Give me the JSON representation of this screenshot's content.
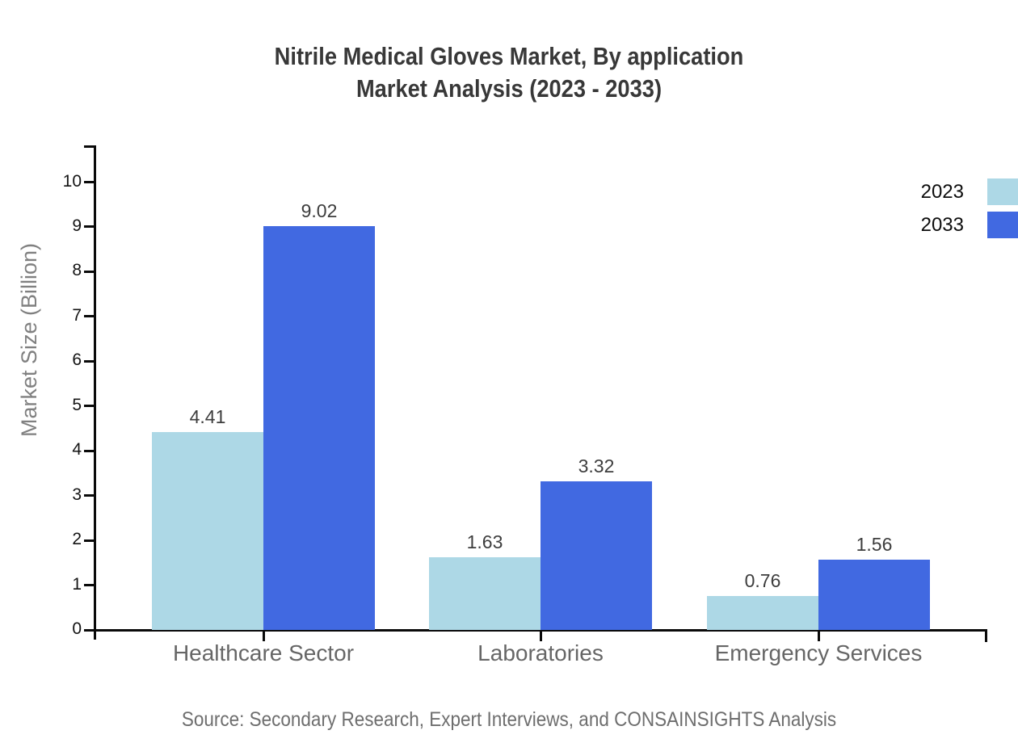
{
  "title": {
    "line1": "Nitrile Medical Gloves Market, By application",
    "line2": "Market Analysis (2023 - 2033)"
  },
  "source": "Source: Secondary Research, Expert Interviews, and CONSAINSIGHTS Analysis",
  "chart_data": {
    "type": "bar",
    "title": "Nitrile Medical Gloves Market, By application Market Analysis (2023 - 2033)",
    "categories": [
      "Healthcare Sector",
      "Laboratories",
      "Emergency Services"
    ],
    "series": [
      {
        "name": "2023",
        "color": "#ADD8E6",
        "values": [
          4.41,
          1.63,
          0.76
        ]
      },
      {
        "name": "2033",
        "color": "#4169E1",
        "values": [
          9.02,
          3.32,
          1.56
        ]
      }
    ],
    "value_labels": [
      "4.41",
      "9.02",
      "1.63",
      "3.32",
      "0.76",
      "1.56"
    ],
    "xlabel": "",
    "ylabel": "Market Size (Billion)",
    "ylim": [
      0,
      10
    ],
    "yticks": [
      0,
      1,
      2,
      3,
      4,
      5,
      6,
      7,
      8,
      9,
      10
    ],
    "grid": false,
    "legend_position": "top-right"
  }
}
